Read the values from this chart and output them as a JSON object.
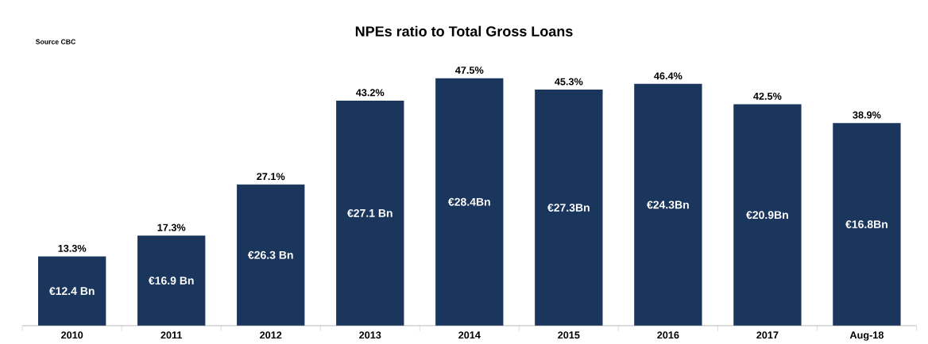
{
  "chart_data": {
    "type": "bar",
    "title": "NPEs ratio to Total Gross Loans",
    "categories": [
      "2010",
      "2011",
      "2012",
      "2013",
      "2014",
      "2015",
      "2016",
      "2017",
      "Aug-18"
    ],
    "values": [
      13.3,
      17.3,
      27.1,
      43.2,
      47.5,
      45.3,
      46.4,
      42.5,
      38.9
    ],
    "value_labels": [
      "13.3%",
      "17.3%",
      "27.1%",
      "43.2%",
      "47.5%",
      "45.3%",
      "46.4%",
      "42.5%",
      "38.9%"
    ],
    "color": "#1b365d",
    "annotations": [
      "Source CBC",
      "€12.4 Bn",
      "€16.9 Bn",
      "€26.3 Bn",
      "€27.1 Bn",
      "€28.4Bn",
      "€27.3Bn",
      "€24.3Bn",
      "€20.9Bn",
      "€16.8Bn"
    ]
  }
}
